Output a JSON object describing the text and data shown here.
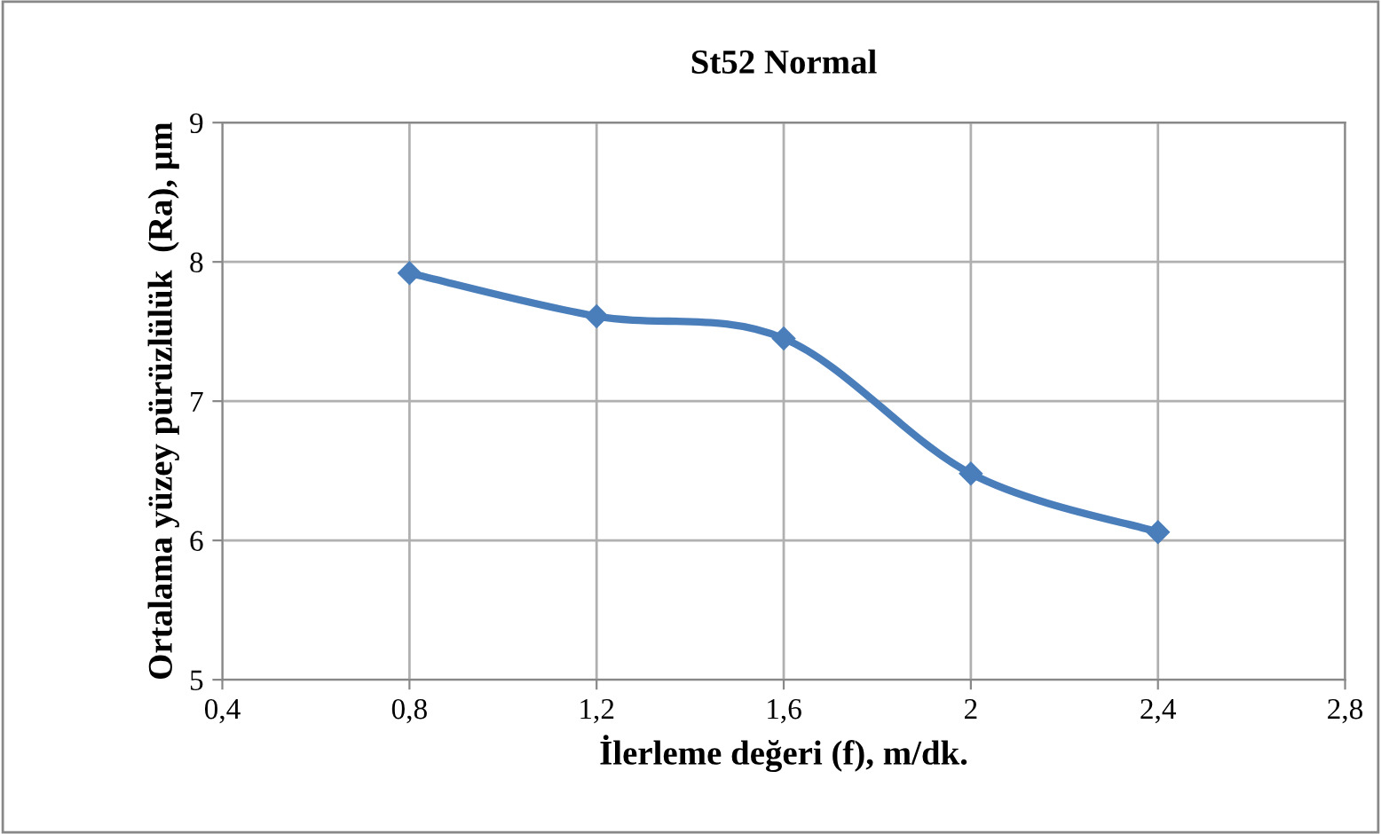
{
  "chart_data": {
    "type": "line",
    "title": "St52 Normal",
    "xlabel": "İlerleme değeri (f), m/dk.",
    "ylabel": "Ortalama yüzey pürüzlülük  (Ra), µm",
    "x": [
      0.8,
      1.2,
      1.6,
      2,
      2.4
    ],
    "series": [
      {
        "color": "#4a7ebb",
        "values": [
          7.92,
          7.61,
          7.45,
          6.48,
          6.06
        ]
      }
    ],
    "xlim": [
      0.4,
      2.8
    ],
    "xticks": [
      {
        "value": 0.4,
        "label": "0,4"
      },
      {
        "value": 0.8,
        "label": "0,8"
      },
      {
        "value": 1.2,
        "label": "1,2"
      },
      {
        "value": 1.6,
        "label": "1,6"
      },
      2,
      {
        "value": 2.4,
        "label": "2,4"
      },
      {
        "value": 2.8,
        "label": "2,8"
      }
    ],
    "ylim": [
      5,
      9
    ],
    "yticks": [
      5,
      6,
      7,
      8,
      9
    ],
    "grid": true,
    "marker": "diamond",
    "line_style": "solid"
  }
}
